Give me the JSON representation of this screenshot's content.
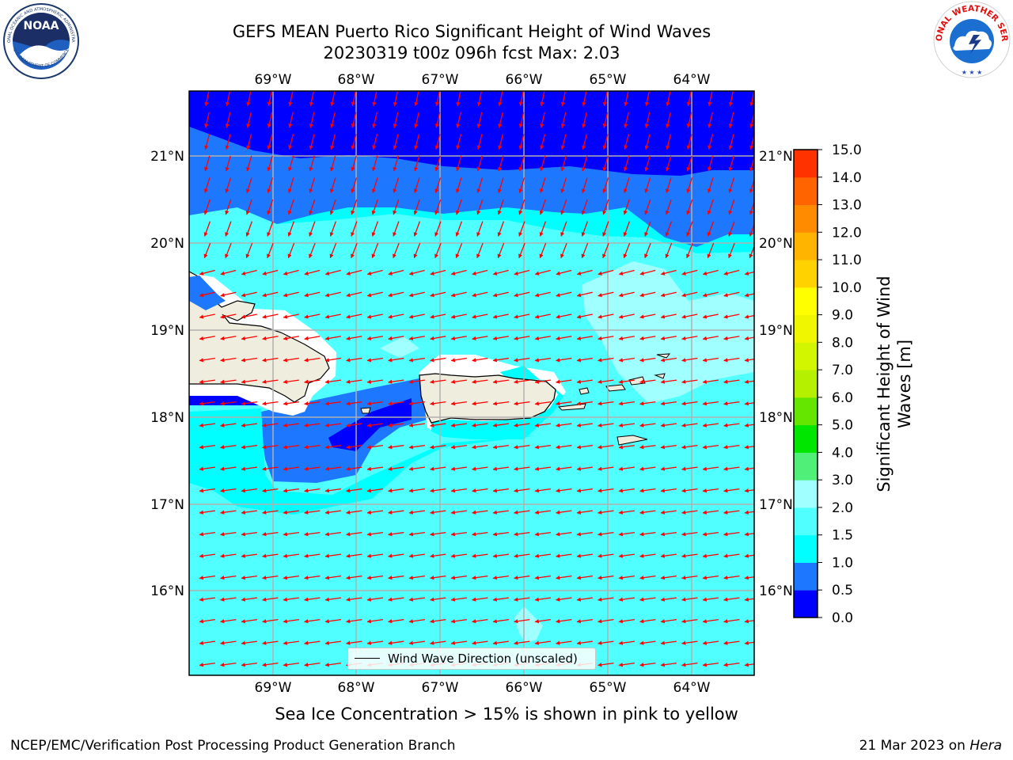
{
  "header": {
    "title_line1": "GEFS MEAN Puerto Rico Significant Height of Wind Waves",
    "title_line2": "20230319 t00z 096h fcst   Max: 2.03"
  },
  "logos": {
    "left": {
      "name": "NOAA",
      "ring_text": "NATIONAL OCEANIC AND ATMOSPHERIC ADMINISTRATION",
      "ring_text_bottom": "U.S. DEPARTMENT OF COMMERCE"
    },
    "right": {
      "ring_text": "NATIONAL WEATHER SERVICE"
    }
  },
  "map": {
    "lon_labels": [
      "69°W",
      "68°W",
      "67°W",
      "66°W",
      "65°W",
      "64°W"
    ],
    "lat_labels": [
      "21°N",
      "20°N",
      "19°N",
      "18°N",
      "17°N",
      "16°N"
    ],
    "legend_label": "Wind Wave Direction (unscaled)",
    "land_color": "#efedde",
    "arrow_color": "#ff0000"
  },
  "colorbar": {
    "label": "Significant Height of Wind Waves [m]",
    "label_line1": "Significant Height of Wind",
    "label_line2": "Waves [m]",
    "ticks": [
      "0.0",
      "0.5",
      "1.0",
      "1.5",
      "2.0",
      "3.0",
      "4.0",
      "5.0",
      "6.0",
      "7.0",
      "8.0",
      "9.0",
      "10.0",
      "11.0",
      "12.0",
      "13.0",
      "14.0",
      "15.0"
    ],
    "colors": [
      "#0000ff",
      "#1e78ff",
      "#00ffff",
      "#50ffff",
      "#a0ffff",
      "#50f078",
      "#00e600",
      "#64e600",
      "#b4f000",
      "#d2f500",
      "#f0f500",
      "#ffff00",
      "#ffd200",
      "#ffb400",
      "#ff8c00",
      "#ff6400",
      "#ff3200",
      "#ff0000"
    ]
  },
  "footer": {
    "ice_note": "Sea Ice Concentration > 15% is shown in pink to yellow",
    "left": "NCEP/EMC/Verification Post Processing Product Generation Branch",
    "date": "21 Mar 2023 on",
    "machine": "Hera"
  }
}
